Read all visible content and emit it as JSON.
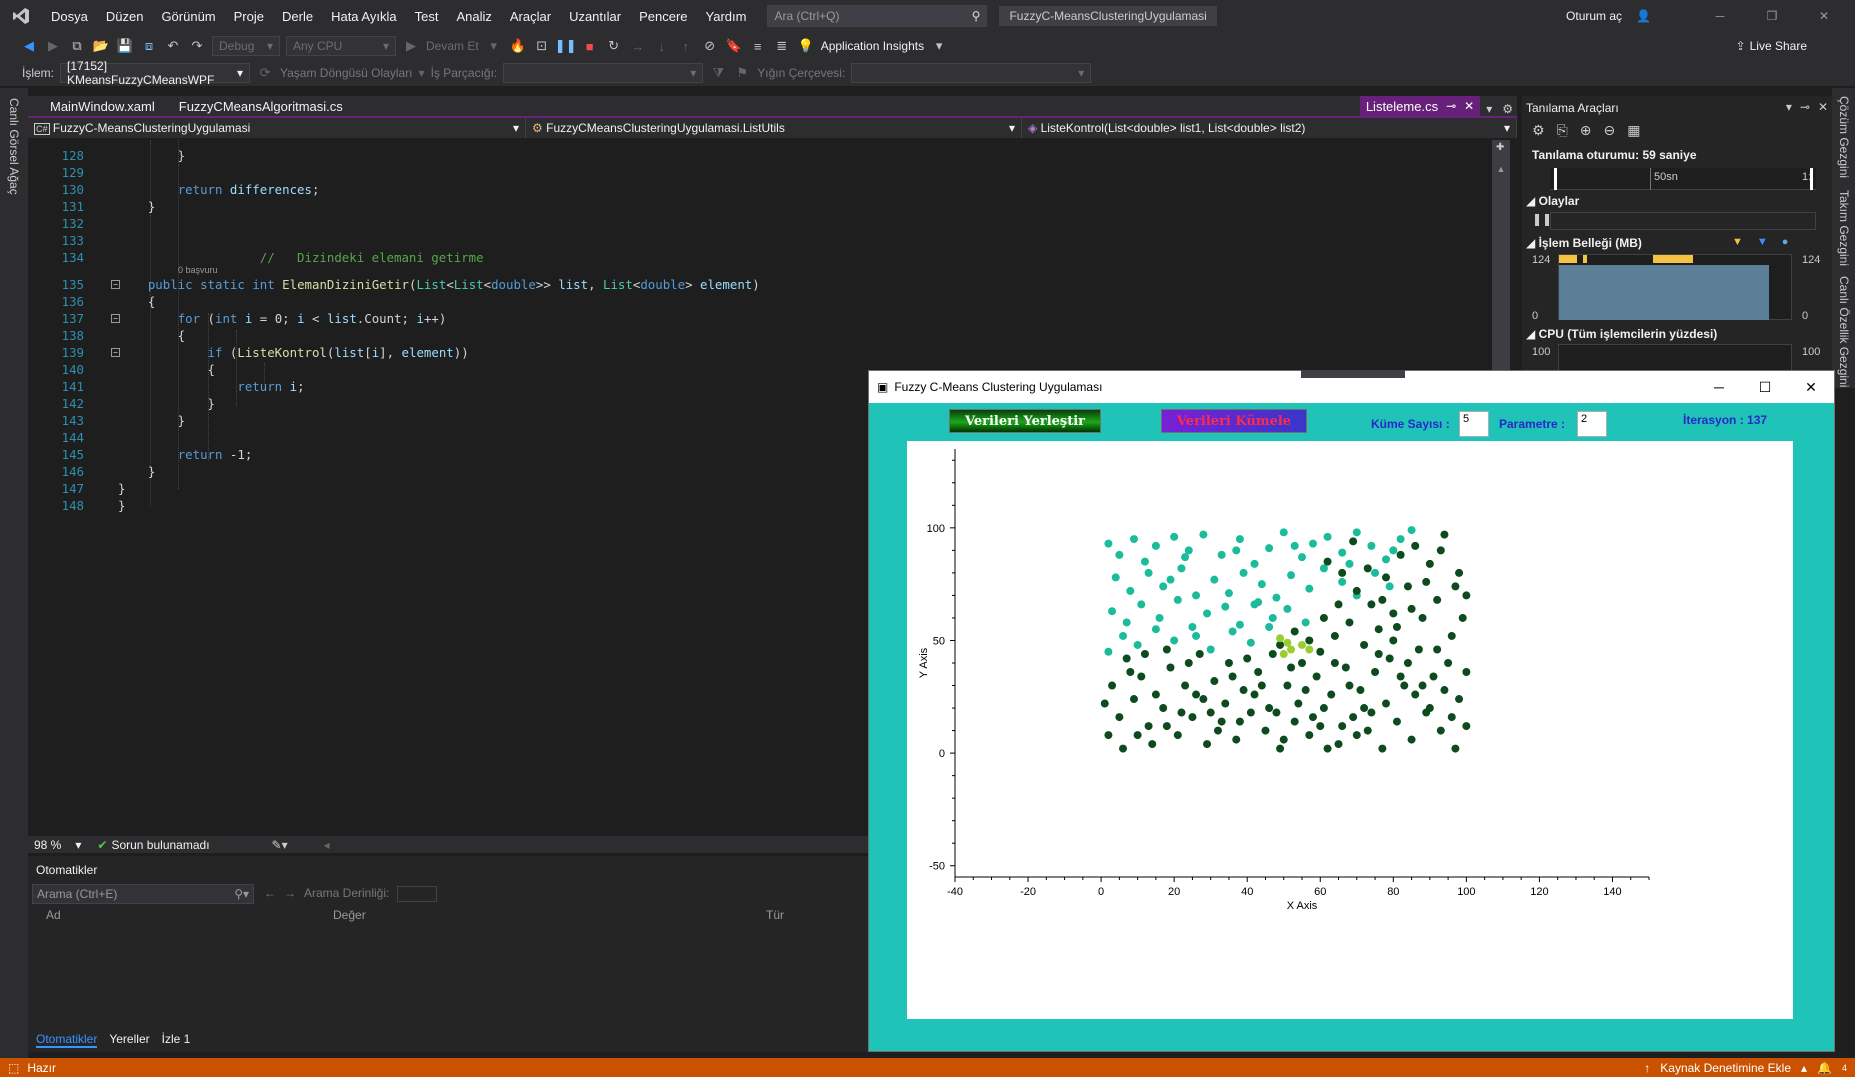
{
  "menu": {
    "items": [
      "Dosya",
      "Düzen",
      "Görünüm",
      "Proje",
      "Derle",
      "Hata Ayıkla",
      "Test",
      "Analiz",
      "Araçlar",
      "Uzantılar",
      "Pencere",
      "Yardım"
    ],
    "search_placeholder": "Ara (Ctrl+Q)",
    "solution_title": "FuzzyC-MeansClusteringUygulamasi",
    "signin": "Oturum aç"
  },
  "toolbar": {
    "config": "Debug",
    "platform": "Any CPU",
    "continue": "Devam Et",
    "app_insights": "Application Insights",
    "live_share": "Live Share"
  },
  "debugbar": {
    "process_label": "İşlem:",
    "process_value": "[17152] KMeansFuzzyCMeansWPF",
    "lifecycle": "Yaşam Döngüsü Olayları",
    "thread_label": "İş Parçacığı:",
    "stackframe_label": "Yığın Çerçevesi:"
  },
  "left_strip": {
    "label": "Canlı Görsel Ağaç"
  },
  "right_strip": {
    "labels": [
      "Çözüm Gezgini",
      "Takım Gezgini",
      "Canlı Özellik Gezgini"
    ]
  },
  "editor": {
    "tabs": [
      "MainWindow.xaml",
      "FuzzyCMeansAlgoritmasi.cs"
    ],
    "active_tab": "Listeleme.cs",
    "nav": {
      "project": "FuzzyC-MeansClusteringUygulamasi",
      "class": "FuzzyCMeansClusteringUygulamasi.ListUtils",
      "member": "ListeKontrol(List<double> list1, List<double> list2)"
    },
    "codelens": "0 başvuru",
    "line_numbers": [
      "128",
      "129",
      "130",
      "131",
      "132",
      "133",
      "134",
      "135",
      "136",
      "137",
      "138",
      "139",
      "140",
      "141",
      "142",
      "143",
      "144",
      "145",
      "146",
      "147",
      "148"
    ],
    "zoom": "98 %",
    "issues": "Sorun bulunamadı"
  },
  "autos": {
    "title": "Otomatikler",
    "search_placeholder": "Arama (Ctrl+E)",
    "depth_label": "Arama Derinliği:",
    "columns": [
      "Ad",
      "Değer",
      "Tür"
    ],
    "bottom_tabs": [
      "Otomatikler",
      "Yereller",
      "İzle 1"
    ]
  },
  "diagnostics": {
    "title": "Tanılama Araçları",
    "session": "Tanılama oturumu: 59 saniye",
    "timeline_label": "50sn",
    "timeline_end": "1:",
    "events": "Olaylar",
    "memory": "İşlem Belleği (MB)",
    "memory_max": "124",
    "memory_min": "0",
    "cpu": "CPU (Tüm işlemcilerin yüzdesi)",
    "cpu_max": "100"
  },
  "statusbar": {
    "ready": "Hazır",
    "source_control": "Kaynak Denetimine Ekle",
    "notifications": "4"
  },
  "wpf": {
    "title": "Fuzzy C-Means Clustering Uygulaması",
    "btn_place": "Verileri Yerleştir",
    "btn_cluster": "Verileri Kümele",
    "cluster_count_label": "Küme Sayısı :",
    "cluster_count": "5",
    "param_label": "Parametre :",
    "param_value": "2",
    "iteration": "İterasyon : 137"
  },
  "chart_data": {
    "type": "scatter",
    "xlabel": "X Axis",
    "ylabel": "Y Axis",
    "xlim": [
      -40,
      150
    ],
    "ylim": [
      -55,
      135
    ],
    "xticks": [
      -40,
      -20,
      0,
      20,
      40,
      60,
      80,
      100,
      120,
      140
    ],
    "yticks": [
      -50,
      0,
      50,
      100
    ],
    "colors": {
      "cluster_a": "#1abc9c",
      "cluster_b": "#0d4a1e",
      "centers": "#9acd32"
    },
    "series": [
      {
        "points": [
          [
            2,
            93
          ],
          [
            5,
            88
          ],
          [
            9,
            95
          ],
          [
            12,
            85
          ],
          [
            15,
            92
          ],
          [
            20,
            96
          ],
          [
            24,
            90
          ],
          [
            28,
            97
          ],
          [
            33,
            88
          ],
          [
            38,
            95
          ],
          [
            42,
            84
          ],
          [
            46,
            91
          ],
          [
            50,
            98
          ],
          [
            55,
            87
          ],
          [
            58,
            93
          ],
          [
            62,
            96
          ],
          [
            66,
            89
          ],
          [
            70,
            98
          ],
          [
            74,
            92
          ],
          [
            78,
            86
          ],
          [
            82,
            95
          ],
          [
            85,
            99
          ],
          [
            4,
            78
          ],
          [
            8,
            72
          ],
          [
            13,
            80
          ],
          [
            17,
            74
          ],
          [
            22,
            82
          ],
          [
            26,
            70
          ],
          [
            31,
            77
          ],
          [
            35,
            71
          ],
          [
            39,
            80
          ],
          [
            44,
            75
          ],
          [
            48,
            69
          ],
          [
            52,
            79
          ],
          [
            57,
            73
          ],
          [
            61,
            82
          ],
          [
            66,
            76
          ],
          [
            70,
            70
          ],
          [
            75,
            80
          ],
          [
            79,
            74
          ],
          [
            3,
            63
          ],
          [
            7,
            58
          ],
          [
            11,
            66
          ],
          [
            16,
            60
          ],
          [
            21,
            68
          ],
          [
            25,
            56
          ],
          [
            29,
            62
          ],
          [
            34,
            65
          ],
          [
            38,
            57
          ],
          [
            43,
            67
          ],
          [
            47,
            60
          ],
          [
            51,
            64
          ],
          [
            56,
            58
          ],
          [
            2,
            45
          ],
          [
            6,
            52
          ],
          [
            10,
            48
          ],
          [
            15,
            55
          ],
          [
            20,
            50
          ],
          [
            26,
            52
          ],
          [
            30,
            46
          ],
          [
            36,
            54
          ],
          [
            41,
            49
          ],
          [
            46,
            56
          ],
          [
            23,
            87
          ],
          [
            37,
            90
          ],
          [
            53,
            92
          ],
          [
            68,
            84
          ],
          [
            80,
            90
          ],
          [
            19,
            77
          ],
          [
            42,
            66
          ]
        ]
      },
      {
        "points": [
          [
            62,
            85
          ],
          [
            66,
            80
          ],
          [
            70,
            72
          ],
          [
            74,
            66
          ],
          [
            78,
            78
          ],
          [
            82,
            88
          ],
          [
            86,
            92
          ],
          [
            90,
            84
          ],
          [
            94,
            97
          ],
          [
            98,
            80
          ],
          [
            100,
            70
          ],
          [
            92,
            68
          ],
          [
            88,
            60
          ],
          [
            84,
            74
          ],
          [
            80,
            62
          ],
          [
            76,
            55
          ],
          [
            72,
            48
          ],
          [
            68,
            58
          ],
          [
            64,
            52
          ],
          [
            60,
            45
          ],
          [
            96,
            52
          ],
          [
            99,
            60
          ],
          [
            95,
            40
          ],
          [
            91,
            34
          ],
          [
            87,
            46
          ],
          [
            83,
            30
          ],
          [
            79,
            42
          ],
          [
            75,
            36
          ],
          [
            71,
            28
          ],
          [
            67,
            38
          ],
          [
            63,
            26
          ],
          [
            59,
            34
          ],
          [
            55,
            40
          ],
          [
            51,
            30
          ],
          [
            47,
            44
          ],
          [
            43,
            36
          ],
          [
            39,
            28
          ],
          [
            35,
            40
          ],
          [
            31,
            32
          ],
          [
            27,
            44
          ],
          [
            23,
            30
          ],
          [
            19,
            38
          ],
          [
            15,
            26
          ],
          [
            11,
            34
          ],
          [
            7,
            42
          ],
          [
            3,
            30
          ],
          [
            1,
            22
          ],
          [
            5,
            16
          ],
          [
            9,
            24
          ],
          [
            13,
            12
          ],
          [
            17,
            20
          ],
          [
            21,
            8
          ],
          [
            25,
            16
          ],
          [
            29,
            4
          ],
          [
            33,
            14
          ],
          [
            37,
            6
          ],
          [
            41,
            18
          ],
          [
            45,
            10
          ],
          [
            49,
            2
          ],
          [
            53,
            14
          ],
          [
            57,
            8
          ],
          [
            61,
            20
          ],
          [
            65,
            4
          ],
          [
            69,
            16
          ],
          [
            73,
            10
          ],
          [
            77,
            2
          ],
          [
            81,
            14
          ],
          [
            85,
            6
          ],
          [
            89,
            18
          ],
          [
            93,
            10
          ],
          [
            97,
            2
          ],
          [
            100,
            12
          ],
          [
            98,
            24
          ],
          [
            94,
            28
          ],
          [
            90,
            20
          ],
          [
            86,
            26
          ],
          [
            82,
            34
          ],
          [
            78,
            22
          ],
          [
            74,
            18
          ],
          [
            70,
            8
          ],
          [
            66,
            12
          ],
          [
            62,
            2
          ],
          [
            58,
            16
          ],
          [
            54,
            22
          ],
          [
            50,
            6
          ],
          [
            46,
            20
          ],
          [
            42,
            26
          ],
          [
            38,
            14
          ],
          [
            34,
            22
          ],
          [
            30,
            18
          ],
          [
            26,
            26
          ],
          [
            22,
            18
          ],
          [
            18,
            12
          ],
          [
            14,
            4
          ],
          [
            10,
            8
          ],
          [
            6,
            2
          ],
          [
            2,
            8
          ],
          [
            8,
            36
          ],
          [
            12,
            44
          ],
          [
            18,
            46
          ],
          [
            24,
            40
          ],
          [
            28,
            24
          ],
          [
            32,
            10
          ],
          [
            36,
            34
          ],
          [
            40,
            42
          ],
          [
            44,
            30
          ],
          [
            48,
            18
          ],
          [
            52,
            38
          ],
          [
            56,
            28
          ],
          [
            60,
            12
          ],
          [
            64,
            40
          ],
          [
            68,
            30
          ],
          [
            72,
            20
          ],
          [
            76,
            44
          ],
          [
            80,
            50
          ],
          [
            84,
            40
          ],
          [
            88,
            30
          ],
          [
            92,
            46
          ],
          [
            96,
            16
          ],
          [
            100,
            36
          ],
          [
            97,
            74
          ],
          [
            93,
            90
          ],
          [
            89,
            76
          ],
          [
            85,
            64
          ],
          [
            81,
            56
          ],
          [
            77,
            68
          ],
          [
            73,
            82
          ],
          [
            69,
            94
          ],
          [
            65,
            66
          ],
          [
            61,
            60
          ],
          [
            57,
            50
          ],
          [
            53,
            54
          ],
          [
            49,
            48
          ]
        ]
      },
      {
        "points": [
          [
            49,
            51
          ],
          [
            51,
            49
          ],
          [
            52,
            46
          ],
          [
            55,
            48
          ],
          [
            57,
            46
          ],
          [
            50,
            44
          ]
        ]
      }
    ]
  }
}
